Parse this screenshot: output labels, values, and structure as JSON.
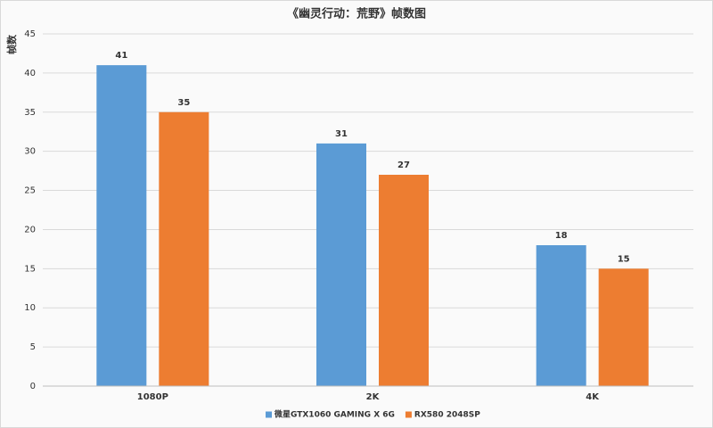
{
  "chart_data": {
    "type": "bar",
    "title": "《幽灵行动：荒野》帧数图",
    "y_label": "帧数",
    "categories": [
      "1080P",
      "2K",
      "4K"
    ],
    "series": [
      {
        "name": "微星GTX1060 GAMING X 6G",
        "color": "#5b9bd5",
        "values": [
          41,
          31,
          18
        ]
      },
      {
        "name": "RX580 2048SP",
        "color": "#ed7d31",
        "values": [
          35,
          27,
          15
        ]
      }
    ],
    "ylim": [
      0,
      45
    ],
    "yticks": [
      0,
      5,
      10,
      15,
      20,
      25,
      30,
      35,
      40,
      45
    ],
    "grid": true,
    "legend": "bottom"
  }
}
